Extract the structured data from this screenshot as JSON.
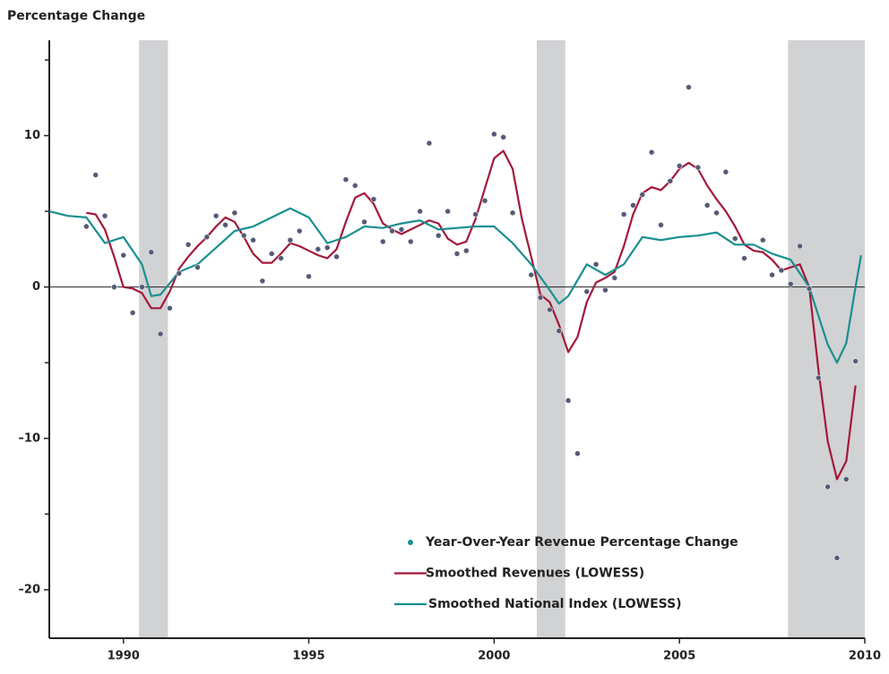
{
  "chart_data": {
    "type": "line",
    "title": "Percentage Change",
    "xlim": [
      1988,
      2010
    ],
    "xticks": [
      1990,
      1995,
      2000,
      2005,
      2010
    ],
    "ylim": [
      -23.2,
      16.3
    ],
    "yticks": [
      10,
      0,
      {
        "value": -10,
        "label": "–10"
      },
      {
        "value": -20,
        "label": "–20"
      }
    ],
    "minor_yticks": [
      15,
      5,
      -5,
      -15
    ],
    "zero_line": true,
    "shaded_periods": [
      [
        1990.42,
        1991.2
      ],
      [
        2001.15,
        2001.92
      ],
      [
        2007.93,
        2010
      ]
    ],
    "shade_color": "#d1d2d4",
    "legend": "lower-right",
    "series": [
      {
        "name": "Year-Over-Year Revenue Percentage Change",
        "type": "scatter",
        "color": "#555a78",
        "legend_color": "#1a8f91",
        "x": [
          1989,
          1989.25,
          1989.5,
          1989.75,
          1990,
          1990.25,
          1990.5,
          1990.75,
          1991,
          1991.25,
          1991.5,
          1991.75,
          1992,
          1992.25,
          1992.5,
          1992.75,
          1993,
          1993.25,
          1993.5,
          1993.75,
          1994,
          1994.25,
          1994.5,
          1994.75,
          1995,
          1995.25,
          1995.5,
          1995.75,
          1996,
          1996.25,
          1996.5,
          1996.75,
          1997,
          1997.25,
          1997.5,
          1997.75,
          1998,
          1998.25,
          1998.5,
          1998.75,
          1999,
          1999.25,
          1999.5,
          1999.75,
          2000,
          2000.25,
          2000.5,
          2001,
          2001.25,
          2001.5,
          2001.75,
          2002,
          2002.25,
          2002.5,
          2002.75,
          2003,
          2003.25,
          2003.5,
          2003.75,
          2004,
          2004.25,
          2004.5,
          2004.75,
          2005,
          2005.25,
          2005.5,
          2005.75,
          2006,
          2006.25,
          2006.5,
          2006.75,
          2007.25,
          2007.5,
          2007.75,
          2008,
          2008.25,
          2008.5,
          2008.75,
          2009,
          2009.25,
          2009.5,
          2009.75
        ],
        "values": [
          4.0,
          7.4,
          4.7,
          0.0,
          2.1,
          -1.7,
          0.0,
          2.3,
          -3.1,
          -1.4,
          0.9,
          2.8,
          1.3,
          3.3,
          4.7,
          4.1,
          4.9,
          3.4,
          3.1,
          0.4,
          2.2,
          1.9,
          3.1,
          3.7,
          0.7,
          2.5,
          2.6,
          2.0,
          7.1,
          6.7,
          4.3,
          5.8,
          3.0,
          3.7,
          3.8,
          3.0,
          5.0,
          9.5,
          3.4,
          5.0,
          2.2,
          2.4,
          4.8,
          5.7,
          10.1,
          9.9,
          4.9,
          0.8,
          -0.7,
          -1.5,
          -2.9,
          -7.5,
          -11.0,
          -0.3,
          1.5,
          -0.2,
          0.6,
          4.8,
          5.4,
          6.1,
          8.9,
          4.1,
          7.0,
          8.0,
          13.2,
          7.9,
          5.4,
          4.9,
          7.6,
          3.2,
          1.9,
          3.1,
          0.8,
          1.1,
          0.2,
          2.7,
          -0.1,
          -6.0,
          -13.2,
          -17.9,
          -12.7,
          -4.9
        ]
      },
      {
        "name": "Smoothed Revenues (LOWESS)",
        "type": "line",
        "color": "#a3193a",
        "x": [
          1989,
          1989.25,
          1989.5,
          1989.75,
          1990,
          1990.25,
          1990.5,
          1990.75,
          1991,
          1991.25,
          1991.5,
          1991.75,
          1992,
          1992.25,
          1992.5,
          1992.75,
          1993,
          1993.25,
          1993.5,
          1993.75,
          1994,
          1994.25,
          1994.5,
          1994.75,
          1995,
          1995.25,
          1995.5,
          1995.75,
          1996,
          1996.25,
          1996.5,
          1996.75,
          1997,
          1997.25,
          1997.5,
          1997.75,
          1998,
          1998.25,
          1998.5,
          1998.75,
          1999,
          1999.25,
          1999.5,
          1999.75,
          2000,
          2000.25,
          2000.5,
          2000.75,
          2001,
          2001.25,
          2001.5,
          2001.75,
          2002,
          2002.25,
          2002.5,
          2002.75,
          2003,
          2003.25,
          2003.5,
          2003.75,
          2004,
          2004.25,
          2004.5,
          2004.75,
          2005,
          2005.25,
          2005.5,
          2005.75,
          2006,
          2006.25,
          2006.5,
          2006.75,
          2007,
          2007.25,
          2007.5,
          2007.75,
          2008,
          2008.25,
          2008.5,
          2008.75,
          2009,
          2009.25,
          2009.5,
          2009.75
        ],
        "values": [
          4.9,
          4.8,
          3.8,
          2.0,
          0.0,
          -0.1,
          -0.4,
          -1.4,
          -1.4,
          -0.3,
          1.2,
          2.0,
          2.7,
          3.3,
          4.0,
          4.6,
          4.3,
          3.3,
          2.2,
          1.6,
          1.6,
          2.2,
          2.9,
          2.7,
          2.4,
          2.1,
          1.9,
          2.5,
          4.3,
          5.9,
          6.2,
          5.5,
          4.2,
          3.8,
          3.5,
          3.8,
          4.1,
          4.4,
          4.2,
          3.2,
          2.8,
          3.0,
          4.5,
          6.5,
          8.5,
          9.0,
          7.8,
          4.5,
          2.0,
          -0.5,
          -1.0,
          -2.5,
          -4.3,
          -3.3,
          -1.0,
          0.3,
          0.6,
          1.0,
          2.7,
          4.8,
          6.2,
          6.6,
          6.4,
          7.0,
          7.8,
          8.2,
          7.8,
          6.7,
          5.8,
          5.0,
          4.0,
          2.8,
          2.4,
          2.3,
          1.8,
          1.1,
          1.3,
          1.5,
          0.0,
          -5.5,
          -10.2,
          -12.7,
          -11.5,
          -6.5
        ]
      },
      {
        "name": "Smoothed National Index (LOWESS)",
        "type": "line",
        "color": "#1a8f91",
        "x": [
          1988,
          1988.5,
          1989,
          1989.5,
          1990,
          1990.5,
          1990.75,
          1991,
          1991.5,
          1992,
          1992.5,
          1993,
          1993.5,
          1994,
          1994.5,
          1995,
          1995.5,
          1996,
          1996.5,
          1997,
          1997.5,
          1998,
          1998.5,
          1999,
          1999.5,
          2000,
          2000.5,
          2001,
          2001.5,
          2001.75,
          2002,
          2002.5,
          2003,
          2003.5,
          2004,
          2004.5,
          2005,
          2005.5,
          2006,
          2006.5,
          2007,
          2007.5,
          2008,
          2008.5,
          2009,
          2009.25,
          2009.5,
          2009.75,
          2009.9
        ],
        "values": [
          5.0,
          4.7,
          4.6,
          2.9,
          3.3,
          1.5,
          -0.6,
          -0.5,
          1.0,
          1.5,
          2.6,
          3.7,
          4.0,
          4.6,
          5.2,
          4.6,
          2.9,
          3.3,
          4.0,
          3.9,
          4.2,
          4.4,
          3.8,
          3.9,
          4.0,
          4.0,
          2.9,
          1.5,
          -0.2,
          -1.1,
          -0.6,
          1.5,
          0.8,
          1.5,
          3.3,
          3.1,
          3.3,
          3.4,
          3.6,
          2.8,
          2.8,
          2.2,
          1.8,
          0.0,
          -3.8,
          -5.0,
          -3.7,
          0.0,
          2.1
        ]
      }
    ]
  }
}
